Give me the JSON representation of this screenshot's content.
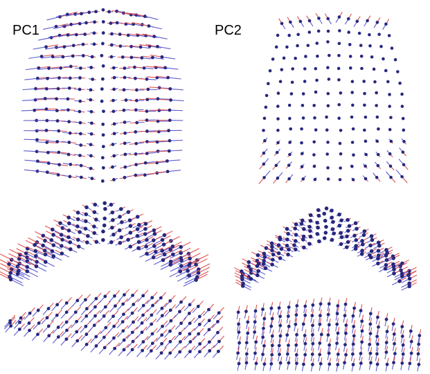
{
  "labels": [
    "PC1",
    "PC2"
  ]
}
